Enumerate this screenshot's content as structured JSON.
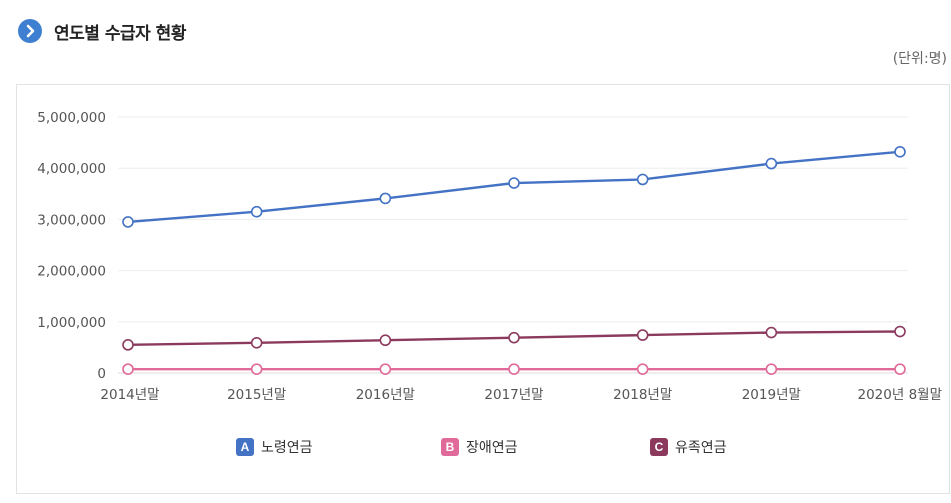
{
  "header": {
    "title": "연도별 수급자 현황",
    "unit": "(단위:명)",
    "icon": "chevron-right-icon"
  },
  "colors": {
    "old_age": "#4472c4",
    "disability": "#e06a9a",
    "survivor": "#8b3a5e",
    "icon": "#3f7fd1"
  },
  "chart_data": {
    "type": "line",
    "title": "연도별 수급자 현황",
    "unit": "(단위:명)",
    "categories": [
      "2014년말",
      "2015년말",
      "2016년말",
      "2017년말",
      "2018년말",
      "2019년말",
      "2020년 8월말"
    ],
    "ylim": [
      0,
      5000000
    ],
    "yticks": [
      0,
      1000000,
      2000000,
      3000000,
      4000000,
      5000000
    ],
    "ytick_labels": [
      "0",
      "1,000,000",
      "2,000,000",
      "3,000,000",
      "4,000,000",
      "5,000,000"
    ],
    "grid": true,
    "legend_position": "bottom",
    "series": [
      {
        "name": "노령연금",
        "badge": "A",
        "color": "#4472c4",
        "values": [
          2950000,
          3150000,
          3410000,
          3710000,
          3780000,
          4090000,
          4320000
        ]
      },
      {
        "name": "장애연금",
        "badge": "B",
        "color": "#e06a9a",
        "values": [
          75000,
          75000,
          75000,
          75000,
          75000,
          75000,
          75000
        ]
      },
      {
        "name": "유족연금",
        "badge": "C",
        "color": "#8b3a5e",
        "values": [
          550000,
          590000,
          640000,
          690000,
          740000,
          790000,
          810000
        ]
      }
    ]
  }
}
